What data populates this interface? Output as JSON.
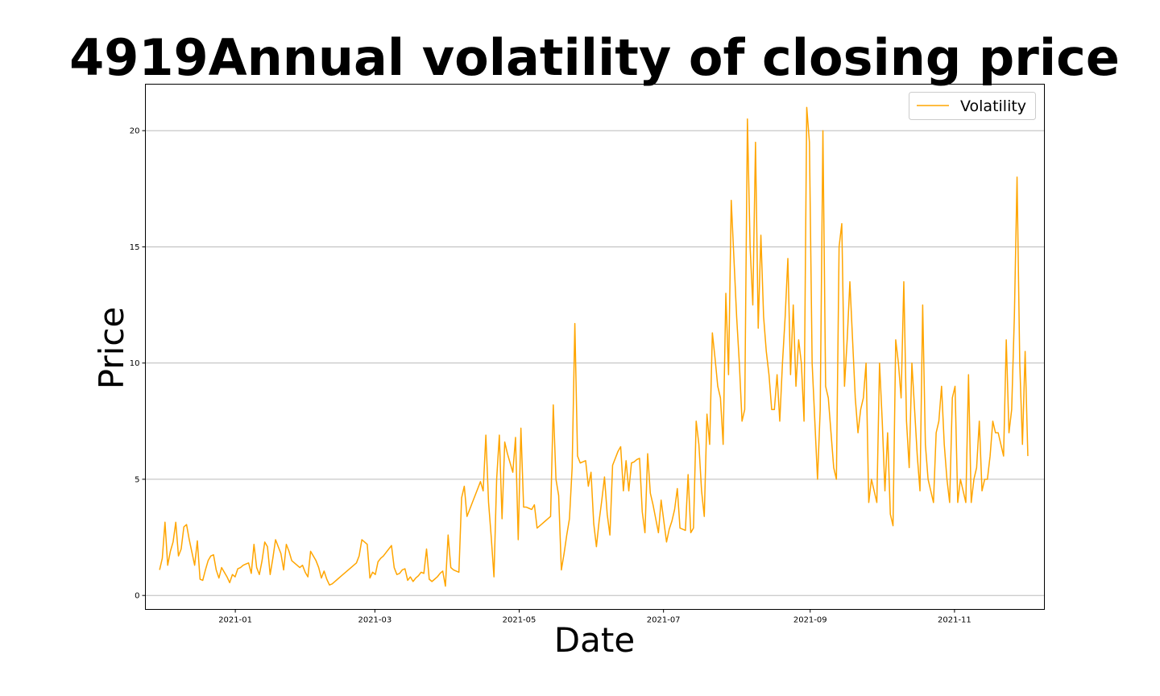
{
  "chart_data": {
    "type": "line",
    "title": "4919Annual volatility of closing price",
    "xlabel": "Date",
    "ylabel": "Price",
    "x_start": "2020-11-30",
    "x_end": "2021-12-02",
    "xlim": [
      "2020-11-24",
      "2021-12-09"
    ],
    "ylim": [
      -0.6,
      22.0
    ],
    "x_ticks": [
      "2021-01",
      "2021-03",
      "2021-05",
      "2021-07",
      "2021-09",
      "2021-11"
    ],
    "x_tick_dates": [
      "2021-01-01",
      "2021-03-01",
      "2021-05-01",
      "2021-07-01",
      "2021-09-01",
      "2021-11-01"
    ],
    "y_ticks": [
      0,
      5,
      10,
      15,
      20
    ],
    "grid": "y",
    "legend_position": "top-right",
    "series": [
      {
        "name": "Volatility",
        "color": "#FFA500",
        "values": [
          1.1,
          1.6,
          3.15,
          1.3,
          1.9,
          2.3,
          3.15,
          1.7,
          2.0,
          2.95,
          3.05,
          2.4,
          1.85,
          1.3,
          2.35,
          0.7,
          0.65,
          1.1,
          1.5,
          1.7,
          1.75,
          1.1,
          0.75,
          1.2,
          1.0,
          0.8,
          0.55,
          0.9,
          0.8,
          1.15,
          1.2,
          1.3,
          1.35,
          1.4,
          0.95,
          2.2,
          1.2,
          0.9,
          1.5,
          2.3,
          2.1,
          0.9,
          1.6,
          2.4,
          2.1,
          1.8,
          1.1,
          2.2,
          1.9,
          1.5,
          1.4,
          1.3,
          1.2,
          1.3,
          1.0,
          0.8,
          1.9,
          1.7,
          1.5,
          1.2,
          0.75,
          1.05,
          0.7,
          0.45,
          0.5,
          0.6,
          0.7,
          0.8,
          0.9,
          1.0,
          1.1,
          1.2,
          1.3,
          1.4,
          1.7,
          2.4,
          2.3,
          2.2,
          0.75,
          1.0,
          0.9,
          1.45,
          1.6,
          1.7,
          1.85,
          2.0,
          2.15,
          1.2,
          0.9,
          0.95,
          1.1,
          1.15,
          0.65,
          0.8,
          0.6,
          0.75,
          0.85,
          1.0,
          0.95,
          2.0,
          0.7,
          0.6,
          0.7,
          0.8,
          0.95,
          1.05,
          0.4,
          2.6,
          1.2,
          1.1,
          1.05,
          1.0,
          4.2,
          4.7,
          3.4,
          3.7,
          4.0,
          4.3,
          4.6,
          4.9,
          4.5,
          6.9,
          4.0,
          2.5,
          0.8,
          5.0,
          6.9,
          3.3,
          6.6,
          6.1,
          5.7,
          5.3,
          6.8,
          2.4,
          7.2,
          3.8,
          3.8,
          3.75,
          3.7,
          3.9,
          2.9,
          3.0,
          3.1,
          3.2,
          3.3,
          3.4,
          8.2,
          5.0,
          4.3,
          1.1,
          1.8,
          2.6,
          3.3,
          5.5,
          11.7,
          6.0,
          5.7,
          5.75,
          5.8,
          4.7,
          5.3,
          3.1,
          2.1,
          3.2,
          4.1,
          5.1,
          3.5,
          2.6,
          5.6,
          5.9,
          6.2,
          6.4,
          4.5,
          5.8,
          4.5,
          5.7,
          5.75,
          5.85,
          5.9,
          3.6,
          2.7,
          6.1,
          4.4,
          3.9,
          3.3,
          2.7,
          4.1,
          3.2,
          2.3,
          2.85,
          3.2,
          3.7,
          4.6,
          2.9,
          2.85,
          2.8,
          5.2,
          2.7,
          2.9,
          7.5,
          6.5,
          4.5,
          3.4,
          7.8,
          6.5,
          11.3,
          10.2,
          9.0,
          8.5,
          6.5,
          13.0,
          9.5,
          17.0,
          14.5,
          12.0,
          10.0,
          7.5,
          8.0,
          20.5,
          15.0,
          12.5,
          19.5,
          11.5,
          15.5,
          12.0,
          10.5,
          9.5,
          8.0,
          8.0,
          9.5,
          7.5,
          10.0,
          12.0,
          14.5,
          9.5,
          12.5,
          9.0,
          11.0,
          10.0,
          7.5,
          21.0,
          19.5,
          10.0,
          7.5,
          5.0,
          8.0,
          20.0,
          9.0,
          8.5,
          7.0,
          5.5,
          5.0,
          15.0,
          16.0,
          9.0,
          11.0,
          13.5,
          11.0,
          8.5,
          7.0,
          8.0,
          8.5,
          10.0,
          4.0,
          5.0,
          4.5,
          4.0,
          10.0,
          7.5,
          4.5,
          7.0,
          3.5,
          3.0,
          11.0,
          10.0,
          8.5,
          13.5,
          7.5,
          5.5,
          10.0,
          8.0,
          6.0,
          4.5,
          12.5,
          6.5,
          5.0,
          4.5,
          4.0,
          7.0,
          7.5,
          9.0,
          6.5,
          5.0,
          4.0,
          8.5,
          9.0,
          4.0,
          5.0,
          4.5,
          4.0,
          9.5,
          4.0,
          5.0,
          5.5,
          7.5,
          4.5,
          5.0,
          5.0,
          6.0,
          7.5,
          7.0,
          7.0,
          6.5,
          6.0,
          11.0,
          7.0,
          8.0,
          12.0,
          18.0,
          10.0,
          6.5,
          10.5,
          6.0
        ]
      }
    ]
  }
}
